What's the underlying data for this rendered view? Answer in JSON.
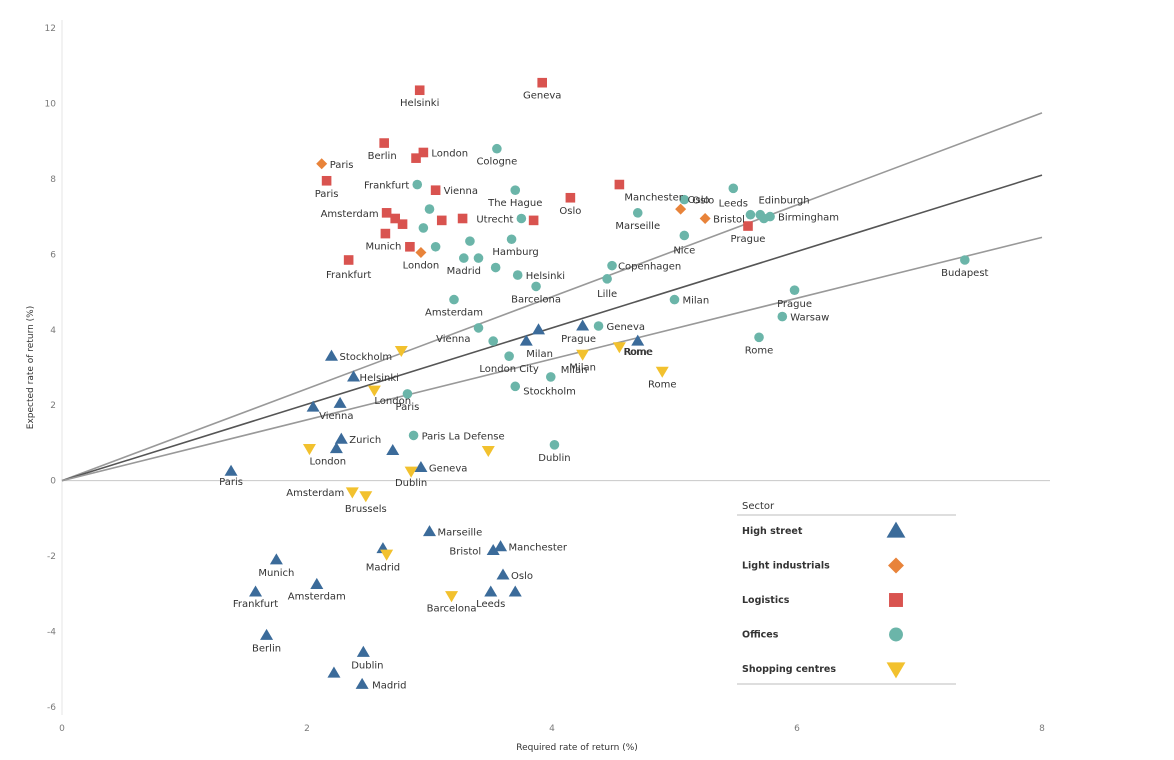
{
  "chart_data": {
    "type": "scatter",
    "title": "",
    "xlabel": "Required rate of return (%)",
    "ylabel": "Expected rate of return (%)",
    "xlim": [
      0,
      8
    ],
    "ylim": [
      -6,
      12
    ],
    "x_ticks": [
      "0",
      "2",
      "4",
      "6",
      "8"
    ],
    "y_ticks": [
      "-6",
      "-4",
      "-2",
      "0",
      "2",
      "4",
      "6",
      "8",
      "10",
      "12"
    ],
    "grid": false,
    "legend": {
      "title": "Sector",
      "placement": "bottom-right",
      "entries": [
        {
          "name": "High street",
          "marker": "triangle-up",
          "color": "#3b6b9a"
        },
        {
          "name": "Light industrials",
          "marker": "diamond",
          "color": "#e8833a"
        },
        {
          "name": "Logistics",
          "marker": "square",
          "color": "#d9534f"
        },
        {
          "name": "Offices",
          "marker": "circle",
          "color": "#6bb5a9"
        },
        {
          "name": "Shopping centres",
          "marker": "triangle-down",
          "color": "#f2c12e"
        }
      ]
    },
    "reference_lines": [
      {
        "from": [
          0,
          0
        ],
        "to": [
          8,
          9.75
        ],
        "color": "#999999"
      },
      {
        "from": [
          0,
          0
        ],
        "to": [
          8,
          8.1
        ],
        "color": "#555555"
      },
      {
        "from": [
          0,
          0
        ],
        "to": [
          8,
          6.45
        ],
        "color": "#999999"
      }
    ],
    "series": [
      {
        "name": "High street",
        "points": [
          {
            "x": 1.38,
            "y": 0.25,
            "label": "Paris"
          },
          {
            "x": 2.05,
            "y": 1.95,
            "label": "Vienna"
          },
          {
            "x": 2.27,
            "y": 2.05,
            "label": ""
          },
          {
            "x": 2.38,
            "y": 2.75,
            "label": "Helsinki"
          },
          {
            "x": 2.2,
            "y": 3.3,
            "label": "Stockholm"
          },
          {
            "x": 2.28,
            "y": 1.1,
            "label": "Zurich"
          },
          {
            "x": 2.24,
            "y": 0.85,
            "label": ""
          },
          {
            "x": 2.7,
            "y": 0.8,
            "label": ""
          },
          {
            "x": 2.93,
            "y": 0.35,
            "label": "Geneva"
          },
          {
            "x": 3.79,
            "y": 3.7,
            "label": "Milan"
          },
          {
            "x": 3.89,
            "y": 4.0,
            "label": ""
          },
          {
            "x": 4.25,
            "y": 4.1,
            "label": "Prague"
          },
          {
            "x": 4.7,
            "y": 3.7,
            "label": "Rome"
          },
          {
            "x": 1.75,
            "y": -2.1,
            "label": "Munich"
          },
          {
            "x": 1.58,
            "y": -2.95,
            "label": "Frankfurt"
          },
          {
            "x": 2.08,
            "y": -2.75,
            "label": "Amsterdam"
          },
          {
            "x": 1.67,
            "y": -4.1,
            "label": "Berlin"
          },
          {
            "x": 2.62,
            "y": -1.8,
            "label": "Madrid"
          },
          {
            "x": 3.0,
            "y": -1.35,
            "label": "Marseille"
          },
          {
            "x": 3.52,
            "y": -1.85,
            "label": "Bristol"
          },
          {
            "x": 3.58,
            "y": -1.75,
            "label": "Manchester"
          },
          {
            "x": 3.6,
            "y": -2.5,
            "label": "Oslo"
          },
          {
            "x": 3.5,
            "y": -2.95,
            "label": "Leeds"
          },
          {
            "x": 3.7,
            "y": -2.95,
            "label": ""
          },
          {
            "x": 2.46,
            "y": -4.55,
            "label": "Dublin"
          },
          {
            "x": 2.22,
            "y": -5.1,
            "label": ""
          },
          {
            "x": 2.45,
            "y": -5.4,
            "label": "Madrid"
          }
        ]
      },
      {
        "name": "Light industrials",
        "points": [
          {
            "x": 2.12,
            "y": 8.4,
            "label": "Paris"
          },
          {
            "x": 2.93,
            "y": 6.05,
            "label": "London"
          },
          {
            "x": 5.05,
            "y": 7.2,
            "label": "Oslo"
          },
          {
            "x": 5.25,
            "y": 6.95,
            "label": "Bristol"
          }
        ]
      },
      {
        "name": "Logistics",
        "points": [
          {
            "x": 2.92,
            "y": 10.35,
            "label": "Helsinki"
          },
          {
            "x": 3.92,
            "y": 10.55,
            "label": "Geneva"
          },
          {
            "x": 2.63,
            "y": 8.95,
            "label": "Berlin"
          },
          {
            "x": 2.95,
            "y": 8.7,
            "label": "London"
          },
          {
            "x": 2.89,
            "y": 8.55,
            "label": ""
          },
          {
            "x": 2.16,
            "y": 7.95,
            "label": "Paris"
          },
          {
            "x": 3.05,
            "y": 7.7,
            "label": "Vienna"
          },
          {
            "x": 2.65,
            "y": 7.1,
            "label": "Amsterdam"
          },
          {
            "x": 2.72,
            "y": 6.95,
            "label": ""
          },
          {
            "x": 2.78,
            "y": 6.8,
            "label": ""
          },
          {
            "x": 3.1,
            "y": 6.9,
            "label": ""
          },
          {
            "x": 3.27,
            "y": 6.95,
            "label": ""
          },
          {
            "x": 3.85,
            "y": 6.9,
            "label": ""
          },
          {
            "x": 4.15,
            "y": 7.5,
            "label": "Oslo"
          },
          {
            "x": 4.55,
            "y": 7.85,
            "label": "Manchester"
          },
          {
            "x": 2.64,
            "y": 6.55,
            "label": "Munich"
          },
          {
            "x": 2.84,
            "y": 6.2,
            "label": ""
          },
          {
            "x": 2.34,
            "y": 5.85,
            "label": "Frankfurt"
          },
          {
            "x": 5.6,
            "y": 6.75,
            "label": "Prague"
          }
        ]
      },
      {
        "name": "Offices",
        "points": [
          {
            "x": 3.55,
            "y": 8.8,
            "label": "Cologne"
          },
          {
            "x": 2.9,
            "y": 7.85,
            "label": "Frankfurt"
          },
          {
            "x": 3.0,
            "y": 7.2,
            "label": ""
          },
          {
            "x": 3.7,
            "y": 7.7,
            "label": "The Hague"
          },
          {
            "x": 3.75,
            "y": 6.95,
            "label": "Utrecht"
          },
          {
            "x": 2.95,
            "y": 6.7,
            "label": ""
          },
          {
            "x": 3.05,
            "y": 6.2,
            "label": ""
          },
          {
            "x": 3.33,
            "y": 6.35,
            "label": ""
          },
          {
            "x": 3.67,
            "y": 6.4,
            "label": "Hamburg"
          },
          {
            "x": 3.28,
            "y": 5.9,
            "label": "Madrid"
          },
          {
            "x": 3.4,
            "y": 5.9,
            "label": ""
          },
          {
            "x": 3.54,
            "y": 5.65,
            "label": ""
          },
          {
            "x": 3.72,
            "y": 5.45,
            "label": "Helsinki"
          },
          {
            "x": 3.87,
            "y": 5.15,
            "label": "Barcelona"
          },
          {
            "x": 3.2,
            "y": 4.8,
            "label": "Amsterdam"
          },
          {
            "x": 3.4,
            "y": 4.05,
            "label": "Vienna"
          },
          {
            "x": 3.52,
            "y": 3.7,
            "label": ""
          },
          {
            "x": 3.65,
            "y": 3.3,
            "label": "London City"
          },
          {
            "x": 3.7,
            "y": 2.5,
            "label": "Stockholm"
          },
          {
            "x": 3.99,
            "y": 2.75,
            "label": "Milan"
          },
          {
            "x": 4.38,
            "y": 4.1,
            "label": "Geneva"
          },
          {
            "x": 4.49,
            "y": 5.7,
            "label": "Copenhagen"
          },
          {
            "x": 4.45,
            "y": 5.35,
            "label": "Lille"
          },
          {
            "x": 4.7,
            "y": 7.1,
            "label": "Marseille"
          },
          {
            "x": 5.08,
            "y": 7.45,
            "label": "Oslo"
          },
          {
            "x": 5.08,
            "y": 6.5,
            "label": "Nice"
          },
          {
            "x": 5.0,
            "y": 4.8,
            "label": "Milan"
          },
          {
            "x": 5.48,
            "y": 7.75,
            "label": "Leeds"
          },
          {
            "x": 5.62,
            "y": 7.05,
            "label": "Edinburgh"
          },
          {
            "x": 5.7,
            "y": 7.05,
            "label": ""
          },
          {
            "x": 5.78,
            "y": 7.0,
            "label": "Birmingham"
          },
          {
            "x": 5.73,
            "y": 6.95,
            "label": ""
          },
          {
            "x": 5.98,
            "y": 5.05,
            "label": "Prague"
          },
          {
            "x": 5.88,
            "y": 4.35,
            "label": "Warsaw"
          },
          {
            "x": 5.69,
            "y": 3.8,
            "label": "Rome"
          },
          {
            "x": 7.37,
            "y": 5.85,
            "label": "Budapest"
          },
          {
            "x": 2.82,
            "y": 2.3,
            "label": "Paris"
          },
          {
            "x": 2.87,
            "y": 1.2,
            "label": "Paris La Defense"
          },
          {
            "x": 4.02,
            "y": 0.95,
            "label": "Dublin"
          }
        ]
      },
      {
        "name": "Shopping centres",
        "points": [
          {
            "x": 2.77,
            "y": 3.45,
            "label": ""
          },
          {
            "x": 2.55,
            "y": 2.4,
            "label": "London"
          },
          {
            "x": 2.02,
            "y": 0.85,
            "label": "London"
          },
          {
            "x": 2.85,
            "y": 0.25,
            "label": "Dublin"
          },
          {
            "x": 3.48,
            "y": 0.8,
            "label": ""
          },
          {
            "x": 4.25,
            "y": 3.35,
            "label": "Milan"
          },
          {
            "x": 4.55,
            "y": 3.55,
            "label": "Rome"
          },
          {
            "x": 4.9,
            "y": 2.9,
            "label": "Rome"
          },
          {
            "x": 2.37,
            "y": -0.3,
            "label": "Amsterdam"
          },
          {
            "x": 2.48,
            "y": -0.4,
            "label": "Brussels"
          },
          {
            "x": 2.65,
            "y": -1.95,
            "label": ""
          },
          {
            "x": 3.18,
            "y": -3.05,
            "label": "Barcelona"
          }
        ]
      }
    ]
  }
}
